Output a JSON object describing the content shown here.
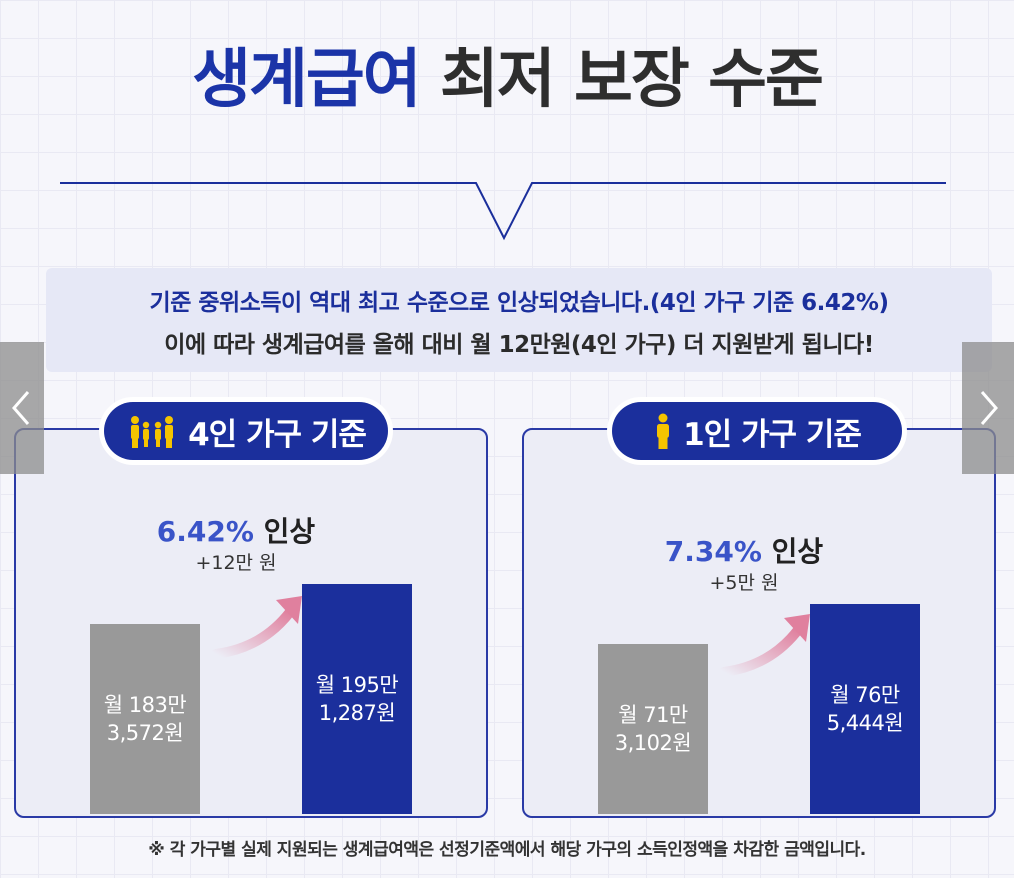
{
  "title": {
    "highlight": "생계급여",
    "rest": " 최저 보장 수준"
  },
  "banner": {
    "line1": "기준 중위소득이 역대 최고 수준으로 인상되었습니다.(4인 가구 기준 6.42%)",
    "line2": "이에 따라 생계급여를 올해 대비 월 12만원(4인 가구) 더 지원받게 됩니다!"
  },
  "panels": [
    {
      "badge": "4인 가구 기준",
      "icon": "family-icon",
      "increase_pct": "6.42%",
      "increase_label": " 인상",
      "increase_amount": "+12만 원",
      "before": {
        "line1": "월 183만",
        "line2": "3,572원"
      },
      "after": {
        "line1": "월 195만",
        "line2": "1,287원"
      }
    },
    {
      "badge": "1인 가구 기준",
      "icon": "person-icon",
      "increase_pct": "7.34%",
      "increase_label": " 인상",
      "increase_amount": "+5만 원",
      "before": {
        "line1": "월 71만",
        "line2": "3,102원"
      },
      "after": {
        "line1": "월 76만",
        "line2": "5,444원"
      }
    }
  ],
  "chart_data": [
    {
      "type": "bar",
      "categories": [
        "월 183만 3,572원",
        "월 195만 1,287원"
      ],
      "values": [
        1833572,
        1951287
      ],
      "title": "4인 가구 기준",
      "annotations": [
        "6.42% 인상",
        "+12만 원"
      ]
    },
    {
      "type": "bar",
      "categories": [
        "월 71만 3,102원",
        "월 76만 5,444원"
      ],
      "values": [
        713102,
        765444
      ],
      "title": "1인 가구 기준",
      "annotations": [
        "7.34% 인상",
        "+5만 원"
      ]
    }
  ],
  "footnote": "※ 각 가구별 실제 지원되는 생계급여액은 선정기준액에서 해당 가구의 소득인정액을 차감한 금액입니다.",
  "nav": {
    "prev_icon": "chevron-left-icon",
    "next_icon": "chevron-right-icon"
  },
  "colors": {
    "accent": "#1b2f9c",
    "highlight": "#3a54c8",
    "before_bar": "#999999",
    "arrow": "#e0809e"
  }
}
